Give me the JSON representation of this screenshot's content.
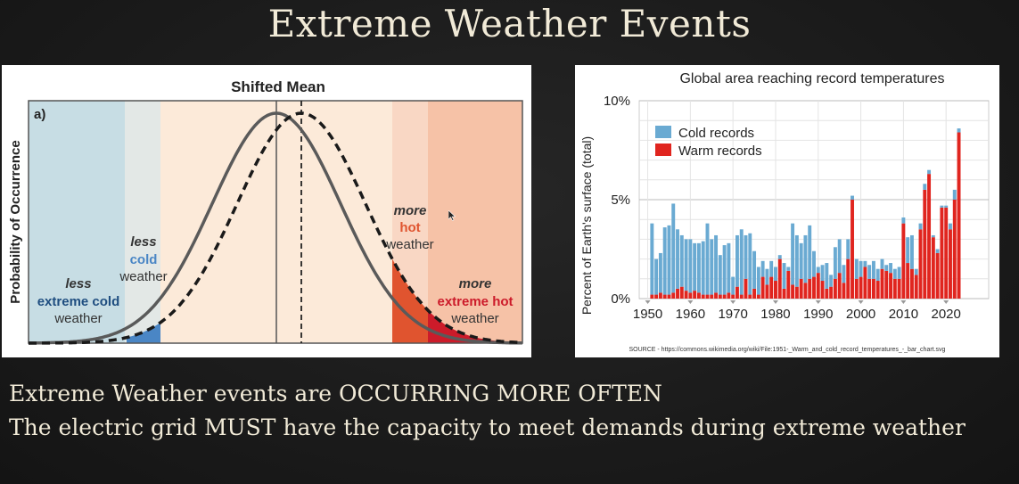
{
  "slide": {
    "title": "Extreme Weather Events",
    "body_lines": [
      "Extreme Weather events are OCCURRING MORE OFTEN",
      "The electric grid MUST have the capacity to meet demands during extreme weather"
    ]
  },
  "left_figure": {
    "title": "Shifted Mean",
    "panel_label": "a)",
    "ylabel": "Probability of Occurrence",
    "labels": {
      "less_extreme_cold": [
        "less",
        "extreme cold",
        "weather"
      ],
      "less_cold": [
        "less",
        "cold",
        "weather"
      ],
      "more_hot": [
        "more",
        "hot",
        "weather"
      ],
      "more_extreme_hot": [
        "more",
        "extreme hot",
        "weather"
      ]
    },
    "colors": {
      "cold": "#4a86c5",
      "hot": "#e0301e",
      "extreme_cold_band": "#c7dde4",
      "hot_band": "#f6c2a7"
    }
  },
  "chart_data": {
    "type": "bar",
    "title": "Global area reaching record temperatures",
    "xlabel": "",
    "ylabel": "Percent of Earth's surface (total)",
    "ylim": [
      0,
      10
    ],
    "y_ticks": [
      "0%",
      "5%",
      "10%"
    ],
    "x_ticks": [
      "1950",
      "1960",
      "1970",
      "1980",
      "1990",
      "2000",
      "2010",
      "2020"
    ],
    "grid": true,
    "legend_position": "top-left",
    "stacked": true,
    "x": [
      1951,
      1952,
      1953,
      1954,
      1955,
      1956,
      1957,
      1958,
      1959,
      1960,
      1961,
      1962,
      1963,
      1964,
      1965,
      1966,
      1967,
      1968,
      1969,
      1970,
      1971,
      1972,
      1973,
      1974,
      1975,
      1976,
      1977,
      1978,
      1979,
      1980,
      1981,
      1982,
      1983,
      1984,
      1985,
      1986,
      1987,
      1988,
      1989,
      1990,
      1991,
      1992,
      1993,
      1994,
      1995,
      1996,
      1997,
      1998,
      1999,
      2000,
      2001,
      2002,
      2003,
      2004,
      2005,
      2006,
      2007,
      2008,
      2009,
      2010,
      2011,
      2012,
      2013,
      2014,
      2015,
      2016,
      2017,
      2018,
      2019,
      2020,
      2021,
      2022,
      2023
    ],
    "series": [
      {
        "name": "Warm records",
        "color": "#e0251f",
        "values": [
          0.2,
          0.2,
          0.3,
          0.2,
          0.2,
          0.3,
          0.5,
          0.6,
          0.4,
          0.3,
          0.4,
          0.3,
          0.2,
          0.2,
          0.2,
          0.3,
          0.2,
          0.2,
          0.3,
          0.2,
          0.6,
          0.2,
          1.0,
          0.2,
          0.5,
          0.2,
          1.1,
          0.7,
          1.1,
          0.9,
          2.0,
          0.5,
          1.4,
          0.7,
          0.6,
          1.0,
          0.8,
          1.0,
          1.1,
          1.3,
          0.9,
          0.5,
          0.6,
          1.0,
          1.3,
          0.8,
          2.0,
          5.0,
          1.0,
          1.1,
          1.6,
          1.0,
          1.0,
          0.9,
          1.5,
          1.4,
          1.3,
          1.0,
          1.0,
          3.8,
          1.8,
          1.5,
          1.2,
          3.5,
          5.5,
          6.3,
          3.1,
          2.3,
          4.6,
          4.6,
          3.5,
          5.0,
          8.4
        ]
      },
      {
        "name": "Cold records",
        "color": "#6aaad2",
        "values": [
          3.6,
          1.8,
          2.0,
          3.4,
          3.5,
          4.5,
          3.0,
          2.6,
          2.6,
          2.7,
          2.4,
          2.5,
          2.7,
          3.6,
          2.8,
          2.9,
          2.0,
          2.5,
          2.5,
          0.9,
          2.6,
          3.3,
          2.2,
          3.1,
          1.9,
          1.4,
          0.8,
          0.8,
          0.8,
          0.7,
          0.2,
          1.3,
          0.2,
          3.1,
          2.6,
          1.8,
          2.4,
          2.7,
          1.3,
          0.3,
          0.8,
          1.3,
          0.6,
          1.6,
          1.7,
          0.9,
          1.0,
          0.2,
          1.0,
          0.8,
          0.3,
          0.7,
          0.9,
          0.6,
          0.5,
          0.3,
          0.5,
          0.5,
          0.6,
          0.3,
          1.3,
          1.7,
          0.3,
          0.3,
          0.3,
          0.2,
          0.1,
          0.2,
          0.1,
          0.1,
          0.3,
          0.5,
          0.2
        ]
      }
    ],
    "source": "SOURCE - https://commons.wikimedia.org/wiki/File:1951-_Warm_and_cold_record_temperatures_-_bar_chart.svg"
  }
}
